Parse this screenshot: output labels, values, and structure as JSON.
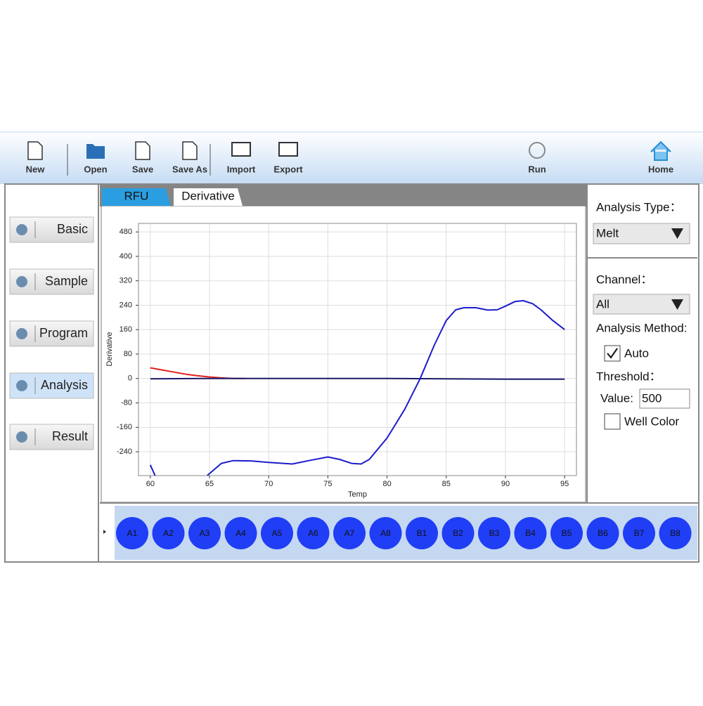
{
  "toolbar": {
    "buttons": [
      "New",
      "Open",
      "Save",
      "Save As",
      "Import",
      "Export",
      "Run",
      "Home"
    ]
  },
  "sidebar": {
    "buttons": [
      "Basic",
      "Sample",
      "Program",
      "Analysis",
      "Result"
    ]
  },
  "tabs": [
    "RFU",
    "Derivative"
  ],
  "chart_data": {
    "type": "line",
    "xlabel": "Temp",
    "ylabel": "Derivative",
    "xlim": [
      59,
      96
    ],
    "xticks": [
      60,
      65,
      70,
      75,
      80,
      85,
      90,
      95
    ],
    "ylim": [
      -318,
      508
    ],
    "yticks": [
      -240,
      -160,
      -80,
      0,
      80,
      160,
      240,
      320,
      400,
      480
    ],
    "grid": true,
    "series": [
      {
        "color": "#e0201c",
        "x": [
          60,
          61,
          62,
          63,
          64,
          65,
          66,
          67,
          68
        ],
        "values": [
          35,
          28,
          21,
          14,
          9,
          5,
          2,
          0,
          0
        ]
      },
      {
        "color": "#1a1a6a",
        "x": [
          60,
          65,
          70,
          80,
          90,
          95
        ],
        "values": [
          -1,
          0,
          0,
          0,
          -2,
          -2
        ]
      },
      {
        "color": "#1c1ccc",
        "x": [
          60,
          60.4,
          62.5,
          64.8,
          66,
          67,
          68.5,
          70,
          72,
          73.5,
          75,
          76,
          77,
          77.8,
          78.5,
          80,
          81.5,
          82.8,
          84,
          85,
          85.8,
          86.5,
          87.5,
          88.5,
          89.3,
          90,
          90.8,
          91.5,
          92.3,
          93,
          94,
          95
        ],
        "values": [
          -283,
          -318,
          null,
          -318,
          -278,
          -269,
          -270,
          -275,
          -280,
          -268,
          -257,
          -265,
          -278,
          -280,
          -265,
          -195,
          -100,
          0,
          110,
          190,
          225,
          232,
          232,
          224,
          225,
          237,
          252,
          255,
          245,
          225,
          190,
          160
        ]
      }
    ]
  },
  "settings_panel": {
    "analysis_type_label": "Analysis Type：",
    "analysis_type": "Melt",
    "channel_label": "Channel：",
    "channel": "All",
    "method_label": "Analysis Method:",
    "auto_label": "Auto",
    "auto_checked": true,
    "threshold_label": "Threshold：",
    "value_label": "Value:",
    "value": 500,
    "well_color_label": "Well Color",
    "well_color_checked": false
  },
  "wells": [
    "A1",
    "A2",
    "A3",
    "A4",
    "A5",
    "A6",
    "A7",
    "A8",
    "B1",
    "B2",
    "B3",
    "B4",
    "B5",
    "B6",
    "B7",
    "B8"
  ]
}
